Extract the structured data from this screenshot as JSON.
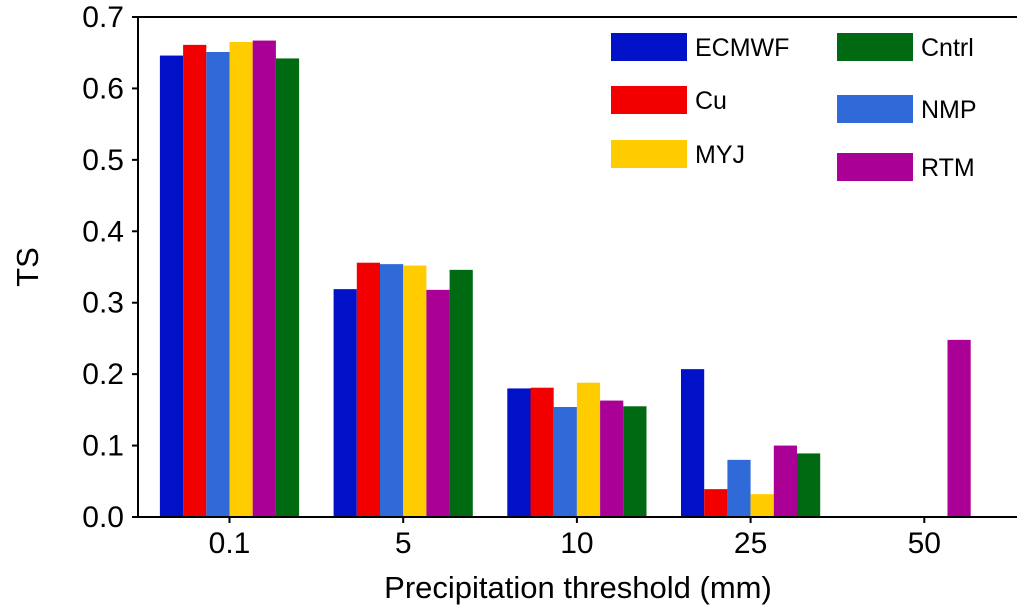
{
  "chart_data": {
    "type": "bar",
    "title": "",
    "xlabel": "Precipitation threshold (mm)",
    "ylabel": "TS",
    "ylim": [
      0.0,
      0.7
    ],
    "yticks": [
      "0.0",
      "0.1",
      "0.2",
      "0.3",
      "0.4",
      "0.5",
      "0.6",
      "0.7"
    ],
    "categories": [
      "0.1",
      "5",
      "10",
      "25",
      "50"
    ],
    "grid": false,
    "legend_position": "top-right",
    "series": [
      {
        "name": "ECMWF",
        "color": "#0011c8",
        "values": [
          0.646,
          0.319,
          0.18,
          0.207,
          null
        ]
      },
      {
        "name": "Cu",
        "color": "#f20000",
        "values": [
          0.661,
          0.356,
          0.181,
          0.039,
          null
        ]
      },
      {
        "name": "NMP",
        "color": "#2f6ad8",
        "values": [
          0.651,
          0.354,
          0.154,
          0.08,
          null
        ]
      },
      {
        "name": "MYJ",
        "color": "#ffcc00",
        "values": [
          0.665,
          0.352,
          0.188,
          0.032,
          null
        ]
      },
      {
        "name": "RTM",
        "color": "#aa0095",
        "values": [
          0.667,
          0.318,
          0.163,
          0.1,
          0.248
        ]
      },
      {
        "name": "Cntrl",
        "color": "#006a12",
        "values": [
          0.642,
          0.346,
          0.155,
          0.089,
          null
        ]
      }
    ]
  }
}
